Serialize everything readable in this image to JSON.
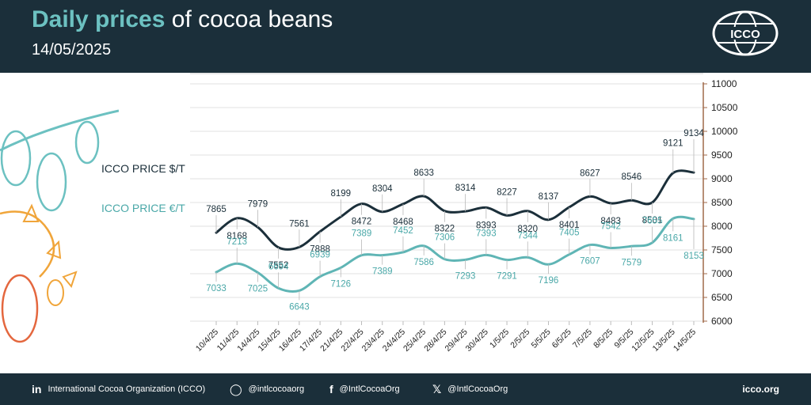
{
  "header": {
    "title_bold": "Daily prices",
    "title_rest": " of cocoa beans",
    "date": "14/05/2025",
    "logo_text": "ICCO"
  },
  "footer": {
    "linkedin": "International Cocoa Organization (ICCO)",
    "instagram": "@intlcocoaorg",
    "facebook": "@IntlCocoaOrg",
    "x": "@IntlCocoaOrg",
    "website": "icco.org"
  },
  "colors": {
    "header_bg": "#1b2f3a",
    "accent": "#6cc1c1",
    "usd_series": "#1b2f3a",
    "eur_series": "#5fb5b5",
    "axis": "#a06a4a"
  },
  "chart_data": {
    "type": "line",
    "categories": [
      "10/4/25",
      "11/4/25",
      "14/4/25",
      "15/4/25",
      "16/4/25",
      "17/4/25",
      "21/4/25",
      "22/4/25",
      "23/4/25",
      "24/4/25",
      "25/4/25",
      "28/4/25",
      "29/4/25",
      "30/4/25",
      "1/5/25",
      "2/5/25",
      "5/5/25",
      "6/5/25",
      "7/5/25",
      "8/5/25",
      "9/5/25",
      "12/5/25",
      "13/5/25",
      "14/5/25"
    ],
    "series": [
      {
        "name": "ICCO PRICE $/T",
        "values": [
          7865,
          8168,
          7979,
          7552,
          7561,
          7888,
          8199,
          8472,
          8304,
          8468,
          8633,
          8322,
          8314,
          8393,
          8227,
          8320,
          8137,
          8401,
          8627,
          8483,
          8546,
          8501,
          9121,
          9134
        ]
      },
      {
        "name": "ICCO PRICE €/T",
        "values": [
          7033,
          7213,
          7025,
          6694,
          6643,
          6939,
          7126,
          7389,
          7389,
          7452,
          7586,
          7306,
          7293,
          7393,
          7291,
          7344,
          7196,
          7405,
          7607,
          7542,
          7579,
          7655,
          8161,
          8153
        ]
      }
    ],
    "y_ticks": [
      6000,
      6500,
      7000,
      7500,
      8000,
      8500,
      9000,
      9500,
      10000,
      10500,
      11000
    ],
    "ylim": [
      6000,
      11000
    ],
    "y_axis_side": "right",
    "grid": true
  }
}
